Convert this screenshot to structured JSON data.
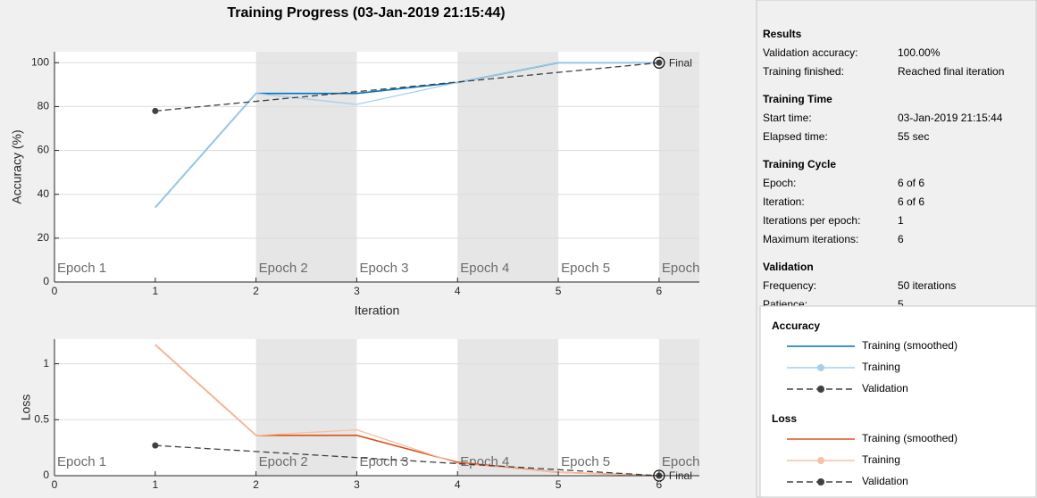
{
  "title": "Training Progress (03-Jan-2019 21:15:44)",
  "chart_data": [
    {
      "type": "line",
      "xlabel": "Iteration",
      "ylabel": "Accuracy (%)",
      "xlim": [
        0,
        6.4
      ],
      "xticks": [
        0,
        1,
        2,
        3,
        4,
        5,
        6
      ],
      "ylim": [
        0,
        105
      ],
      "yticks": [
        0,
        20,
        40,
        60,
        80,
        100
      ],
      "grid": true,
      "band_color": "#e6e6e6",
      "epochs": [
        {
          "label": "Epoch 1",
          "start": 0
        },
        {
          "label": "Epoch 2",
          "start": 2
        },
        {
          "label": "Epoch 3",
          "start": 3
        },
        {
          "label": "Epoch 4",
          "start": 4
        },
        {
          "label": "Epoch 5",
          "start": 5
        },
        {
          "label": "Epoch",
          "start": 6
        }
      ],
      "final_label": "Final",
      "legend_title": "Accuracy",
      "series": [
        {
          "name": "Training (smoothed)",
          "color": "#0072bd",
          "dashed": false,
          "markers": false,
          "x": [
            1,
            2,
            3,
            4,
            5,
            6
          ],
          "values": [
            34,
            86,
            86,
            91,
            100,
            100
          ]
        },
        {
          "name": "Training",
          "color": "#a6cfeb",
          "dashed": false,
          "markers": true,
          "x": [
            1,
            2,
            3,
            4,
            5,
            6
          ],
          "values": [
            34,
            86,
            81,
            91,
            100,
            100
          ]
        },
        {
          "name": "Validation",
          "color": "#404040",
          "dashed": true,
          "markers": true,
          "x": [
            1,
            6
          ],
          "values": [
            78,
            100
          ]
        }
      ]
    },
    {
      "type": "line",
      "ylabel": "Loss",
      "xlim": [
        0,
        6.4
      ],
      "xticks": [
        0,
        1,
        2,
        3,
        4,
        5,
        6
      ],
      "ylim": [
        0,
        1.22
      ],
      "yticks": [
        0,
        0.5,
        1
      ],
      "grid": true,
      "band_color": "#e6e6e6",
      "epochs": [
        {
          "label": "Epoch 1",
          "start": 0
        },
        {
          "label": "Epoch 2",
          "start": 2
        },
        {
          "label": "Epoch 3",
          "start": 3
        },
        {
          "label": "Epoch 4",
          "start": 4
        },
        {
          "label": "Epoch 5",
          "start": 5
        },
        {
          "label": "Epoch",
          "start": 6
        }
      ],
      "final_label": "Final",
      "legend_title": "Loss",
      "series": [
        {
          "name": "Training (smoothed)",
          "color": "#d95319",
          "dashed": false,
          "markers": false,
          "x": [
            1,
            2,
            3,
            4,
            5,
            6
          ],
          "values": [
            1.17,
            0.36,
            0.36,
            0.12,
            0.03,
            0
          ]
        },
        {
          "name": "Training",
          "color": "#f4c2a9",
          "dashed": false,
          "markers": true,
          "x": [
            1,
            2,
            3,
            4,
            5,
            6
          ],
          "values": [
            1.17,
            0.36,
            0.41,
            0.11,
            0.03,
            0
          ]
        },
        {
          "name": "Validation",
          "color": "#404040",
          "dashed": true,
          "markers": true,
          "x": [
            1,
            6
          ],
          "values": [
            0.27,
            0
          ]
        }
      ]
    }
  ],
  "info_panel": {
    "sections": [
      {
        "heading": "Results",
        "rows": [
          [
            "Validation accuracy:",
            "100.00%"
          ],
          [
            "Training finished:",
            "Reached final iteration"
          ]
        ]
      },
      {
        "heading": "Training Time",
        "rows": [
          [
            "Start time:",
            "03-Jan-2019 21:15:44"
          ],
          [
            "Elapsed time:",
            "55 sec"
          ]
        ]
      },
      {
        "heading": "Training Cycle",
        "rows": [
          [
            "Epoch:",
            "6 of 6"
          ],
          [
            "Iteration:",
            "6 of 6"
          ],
          [
            "Iterations per epoch:",
            "1"
          ],
          [
            "Maximum iterations:",
            "6"
          ]
        ]
      },
      {
        "heading": "Validation",
        "rows": [
          [
            "Frequency:",
            "50 iterations"
          ],
          [
            "Patience:",
            "5"
          ]
        ]
      }
    ]
  }
}
